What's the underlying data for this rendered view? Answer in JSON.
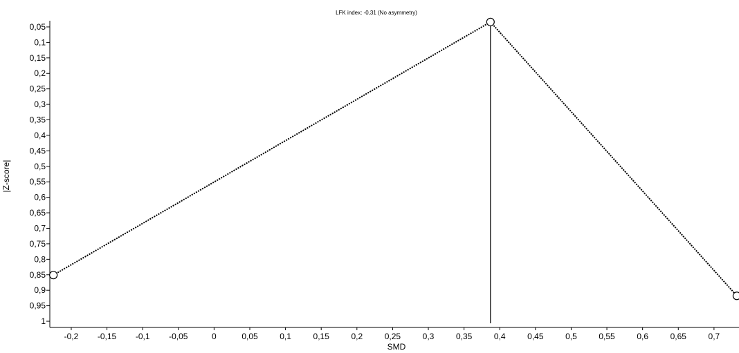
{
  "chart_data": {
    "type": "scatter",
    "title": "LFK index: -0,31 (No asymmetry)",
    "xlabel": "SMD",
    "ylabel": "|Z-score|",
    "y_reversed": true,
    "grid": false,
    "legend": "none",
    "xlim": [
      -0.23,
      0.735
    ],
    "ylim": [
      0.03,
      1.02
    ],
    "x_ticks": [
      -0.2,
      -0.15,
      -0.1,
      -0.05,
      0,
      0.05,
      0.1,
      0.15,
      0.2,
      0.25,
      0.3,
      0.35,
      0.4,
      0.45,
      0.5,
      0.55,
      0.6,
      0.65,
      0.7
    ],
    "x_tick_labels": [
      "-0,2",
      "-0,15",
      "-0,1",
      "-0,05",
      "0",
      "0,05",
      "0,1",
      "0,15",
      "0,2",
      "0,25",
      "0,3",
      "0,35",
      "0,4",
      "0,45",
      "0,5",
      "0,55",
      "0,6",
      "0,65",
      "0,7"
    ],
    "y_ticks": [
      0.05,
      0.1,
      0.15,
      0.2,
      0.25,
      0.3,
      0.35,
      0.4,
      0.45,
      0.5,
      0.55,
      0.6,
      0.65,
      0.7,
      0.75,
      0.8,
      0.85,
      0.9,
      0.95,
      1
    ],
    "y_tick_labels": [
      "0,05",
      "0,1",
      "0,15",
      "0,2",
      "0,25",
      "0,3",
      "0,35",
      "0,4",
      "0,45",
      "0,5",
      "0,55",
      "0,6",
      "0,65",
      "0,7",
      "0,75",
      "0,8",
      "0,85",
      "0,9",
      "0,95",
      "1"
    ],
    "points": [
      {
        "x": -0.225,
        "y": 0.851
      },
      {
        "x": 0.387,
        "y": 0.034
      },
      {
        "x": 0.732,
        "y": 0.918
      }
    ],
    "reference_line_x": 0.387,
    "colors": {
      "marker_fill": "#ffffff",
      "marker_stroke": "#000000",
      "line": "#000000"
    }
  }
}
